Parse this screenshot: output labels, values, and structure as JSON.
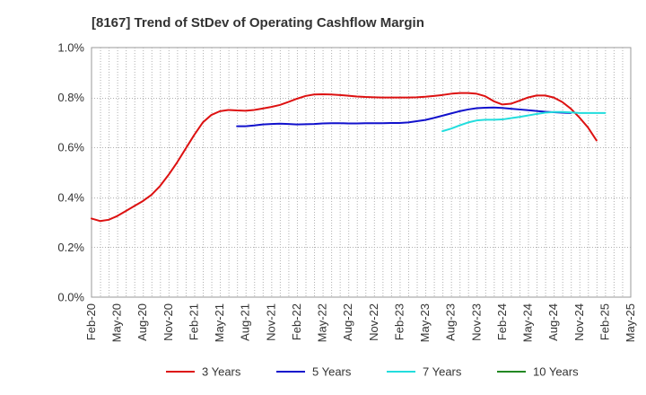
{
  "chart_data": {
    "type": "line",
    "title": "[8167]  Trend of StDev of Operating Cashflow Margin",
    "xlabel": "",
    "ylabel": "",
    "ylim": [
      0.0,
      1.0
    ],
    "y_ticks": [
      "0.0%",
      "0.2%",
      "0.4%",
      "0.6%",
      "0.8%",
      "1.0%"
    ],
    "y_tick_values": [
      0.0,
      0.2,
      0.4,
      0.6,
      0.8,
      1.0
    ],
    "x_tick_labels": [
      "Feb-20",
      "May-20",
      "Aug-20",
      "Nov-20",
      "Feb-21",
      "May-21",
      "Aug-21",
      "Nov-21",
      "Feb-22",
      "May-22",
      "Aug-22",
      "Nov-22",
      "Feb-23",
      "May-23",
      "Aug-23",
      "Nov-23",
      "Feb-24",
      "May-24",
      "Aug-24",
      "Nov-24",
      "Feb-25",
      "May-25"
    ],
    "x_start": "2020-02",
    "x_months_total": 63,
    "grid": true,
    "legend_position": "bottom",
    "series": [
      {
        "name": "3 Years",
        "color": "#dd1111",
        "start": "2020-02",
        "values": [
          0.315,
          0.305,
          0.31,
          0.325,
          0.345,
          0.365,
          0.385,
          0.41,
          0.445,
          0.49,
          0.54,
          0.595,
          0.65,
          0.7,
          0.73,
          0.745,
          0.75,
          0.748,
          0.747,
          0.75,
          0.756,
          0.762,
          0.77,
          0.782,
          0.795,
          0.806,
          0.812,
          0.813,
          0.812,
          0.81,
          0.807,
          0.804,
          0.802,
          0.801,
          0.8,
          0.8,
          0.8,
          0.8,
          0.801,
          0.803,
          0.806,
          0.81,
          0.815,
          0.818,
          0.818,
          0.815,
          0.805,
          0.785,
          0.772,
          0.775,
          0.787,
          0.8,
          0.808,
          0.808,
          0.8,
          0.782,
          0.755,
          0.72,
          0.68,
          0.628
        ]
      },
      {
        "name": "5 Years",
        "color": "#1111cc",
        "start": "2021-07",
        "values": [
          0.685,
          0.685,
          0.688,
          0.692,
          0.694,
          0.695,
          0.694,
          0.692,
          0.693,
          0.694,
          0.696,
          0.697,
          0.697,
          0.696,
          0.696,
          0.697,
          0.697,
          0.697,
          0.698,
          0.698,
          0.7,
          0.705,
          0.71,
          0.718,
          0.727,
          0.736,
          0.745,
          0.752,
          0.757,
          0.759,
          0.76,
          0.758,
          0.755,
          0.752,
          0.749,
          0.746,
          0.743,
          0.741,
          0.739,
          0.738
        ]
      },
      {
        "name": "7 Years",
        "color": "#22dddd",
        "start": "2023-07",
        "values": [
          0.665,
          0.675,
          0.688,
          0.7,
          0.708,
          0.711,
          0.711,
          0.712,
          0.717,
          0.722,
          0.728,
          0.734,
          0.739,
          0.742,
          0.742,
          0.74,
          0.738,
          0.738,
          0.738,
          0.738
        ]
      },
      {
        "name": "10 Years",
        "color": "#228822",
        "start": "2025-02",
        "values": []
      }
    ]
  }
}
